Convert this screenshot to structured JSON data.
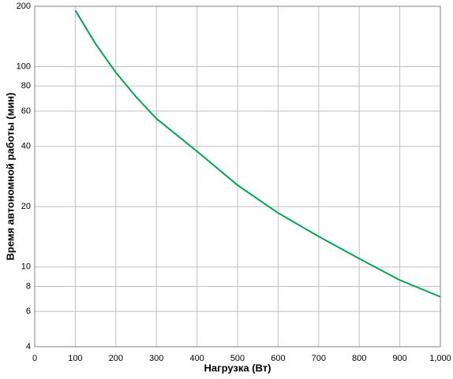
{
  "chart_data": {
    "type": "line",
    "x_label": "Нагрузка (Вт)",
    "y_label": "Время автономной работы (мин)",
    "x": [
      100,
      150,
      200,
      250,
      300,
      400,
      500,
      600,
      700,
      800,
      900,
      1000
    ],
    "series": [
      {
        "color": "#00a550",
        "values": [
          191,
          130,
          93.5,
          70.6,
          55,
          37.8,
          25.6,
          18.6,
          14.2,
          11.0,
          8.6,
          7.1
        ]
      }
    ],
    "xlim": [
      0,
      1000
    ],
    "xticks": [
      0,
      100,
      200,
      300,
      400,
      500,
      600,
      700,
      800,
      900,
      {
        "value": 1000,
        "label": "1,000"
      }
    ],
    "ylim": [
      4,
      200
    ],
    "yticks": [
      4,
      6,
      8,
      10,
      20,
      40,
      60,
      80,
      100,
      200
    ],
    "ylog": true,
    "grid": true
  }
}
